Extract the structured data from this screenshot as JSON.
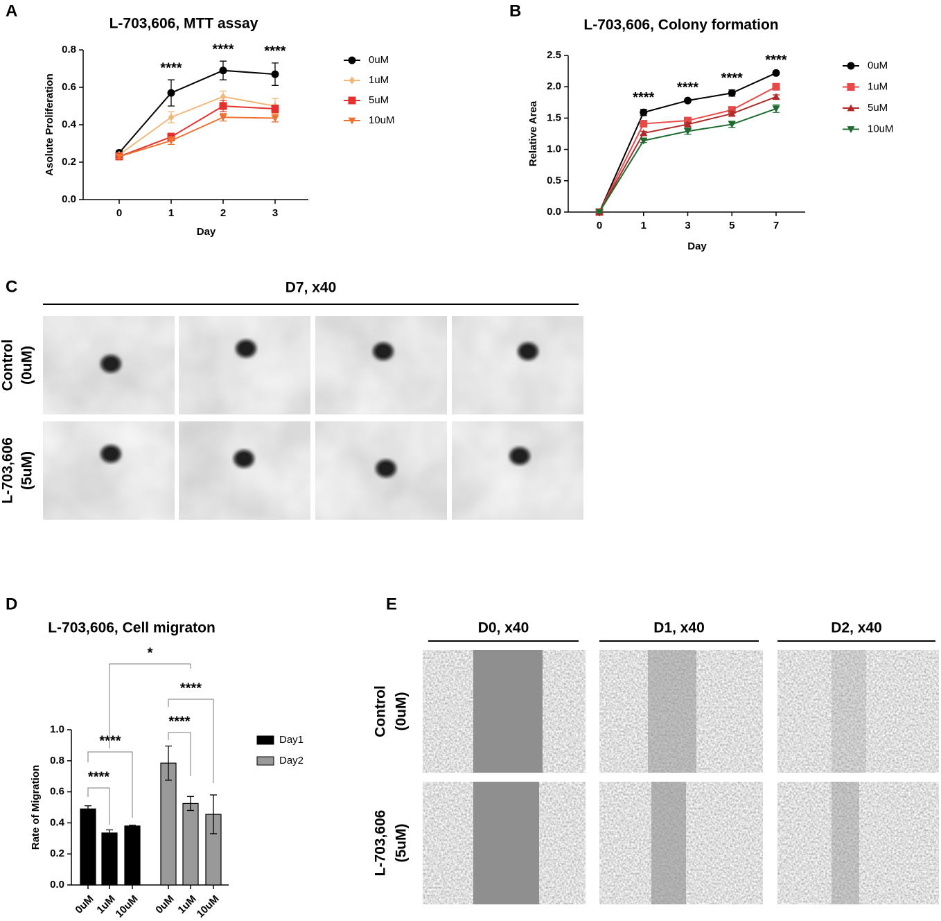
{
  "chart_data": [
    {
      "type": "line",
      "panel": "A",
      "title": "L-703,606, MTT assay",
      "x_label": "Day",
      "y_label": "Asolute Proliferation",
      "categories": [
        "0",
        "1",
        "2",
        "3"
      ],
      "ylim": [
        0,
        0.8
      ],
      "yticks": [
        {
          "value": 0,
          "label": "0.0"
        },
        {
          "value": 0.2,
          "label": "0.2"
        },
        {
          "value": 0.4,
          "label": "0.4"
        },
        {
          "value": 0.6,
          "label": "0.6"
        },
        {
          "value": 0.8,
          "label": "0.8"
        }
      ],
      "series": [
        {
          "name": "0uM",
          "color": "#000000",
          "marker": "circle",
          "values": [
            0.25,
            0.57,
            0.69,
            0.67
          ],
          "errors": [
            0.01,
            0.07,
            0.05,
            0.06
          ]
        },
        {
          "name": "1uM",
          "color": "#f0b87a",
          "marker": "diamond",
          "values": [
            0.24,
            0.44,
            0.55,
            0.5
          ],
          "errors": [
            0.01,
            0.03,
            0.03,
            0.04
          ]
        },
        {
          "name": "5uM",
          "color": "#e53030",
          "marker": "square",
          "values": [
            0.23,
            0.335,
            0.5,
            0.485
          ],
          "errors": [
            0.01,
            0.02,
            0.03,
            0.02
          ]
        },
        {
          "name": "10uM",
          "color": "#f07030",
          "marker": "triangle-down",
          "values": [
            0.23,
            0.315,
            0.44,
            0.435
          ],
          "errors": [
            0.01,
            0.02,
            0.02,
            0.02
          ]
        }
      ],
      "annotations": [
        "****",
        "****",
        "****"
      ]
    },
    {
      "type": "line",
      "panel": "B",
      "title": "L-703,606, Colony formation",
      "x_label": "Day",
      "y_label": "Relative Area",
      "categories": [
        "0",
        "1",
        "3",
        "5",
        "7"
      ],
      "ylim": [
        0,
        2.5
      ],
      "yticks": [
        {
          "value": 0,
          "label": "0.0"
        },
        {
          "value": 0.5,
          "label": "0.5"
        },
        {
          "value": 1,
          "label": "1.0"
        },
        {
          "value": 1.5,
          "label": "1.5"
        },
        {
          "value": 2,
          "label": "2.0"
        },
        {
          "value": 2.5,
          "label": "2.5"
        }
      ],
      "series": [
        {
          "name": "0uM",
          "color": "#000000",
          "marker": "circle",
          "values": [
            0,
            1.59,
            1.78,
            1.9,
            2.22
          ],
          "errors": [
            0.01,
            0.05,
            0.02,
            0.05,
            0.02
          ]
        },
        {
          "name": "1uM",
          "color": "#e84a4a",
          "marker": "square",
          "values": [
            0,
            1.41,
            1.46,
            1.63,
            2.0
          ],
          "errors": [
            0.01,
            0.04,
            0.03,
            0.05,
            0.03
          ]
        },
        {
          "name": "5uM",
          "color": "#b02a2a",
          "marker": "triangle",
          "values": [
            0,
            1.26,
            1.4,
            1.57,
            1.84
          ],
          "errors": [
            0.01,
            0.03,
            0.03,
            0.04,
            0.03
          ]
        },
        {
          "name": "10uM",
          "color": "#1e6b30",
          "marker": "triangle-down",
          "values": [
            0,
            1.14,
            1.29,
            1.4,
            1.65
          ],
          "errors": [
            0.01,
            0.03,
            0.05,
            0.05,
            0.06
          ]
        }
      ],
      "annotations": [
        "****",
        "****",
        "****",
        "****"
      ]
    },
    {
      "type": "bar",
      "panel": "D",
      "title": "L-703,606, Cell migraton",
      "y_label": "Rate of Migration",
      "categories": [
        "0uM",
        "1uM",
        "10uM"
      ],
      "ylim": [
        0,
        1.0
      ],
      "yticks": [
        {
          "value": 0,
          "label": "0.0"
        },
        {
          "value": 0.2,
          "label": "0.2"
        },
        {
          "value": 0.4,
          "label": "0.4"
        },
        {
          "value": 0.6,
          "label": "0.6"
        },
        {
          "value": 0.8,
          "label": "0.8"
        },
        {
          "value": 1,
          "label": "1.0"
        }
      ],
      "series": [
        {
          "name": "Day1",
          "color": "#000000",
          "values": [
            0.49,
            0.335,
            0.38
          ],
          "errors": [
            0.02,
            0.02,
            0.005
          ]
        },
        {
          "name": "Day2",
          "color": "#999999",
          "values": [
            0.785,
            0.525,
            0.455
          ],
          "errors": [
            0.11,
            0.045,
            0.125
          ]
        }
      ],
      "annotations": [
        "****",
        "****",
        "****",
        "****",
        "*"
      ]
    }
  ],
  "photo_panels": [
    {
      "panel": "C",
      "headers": [
        "D7, x40"
      ],
      "rows": [
        [
          "Control",
          "(0uM)"
        ],
        [
          "L-703,606",
          "(5uM)"
        ]
      ]
    },
    {
      "panel": "E",
      "headers": [
        "D0, x40",
        "D1, x40",
        "D2, x40"
      ],
      "rows": [
        [
          "Control",
          "(0uM)"
        ],
        [
          "L-703,606",
          "(5uM)"
        ]
      ]
    }
  ]
}
